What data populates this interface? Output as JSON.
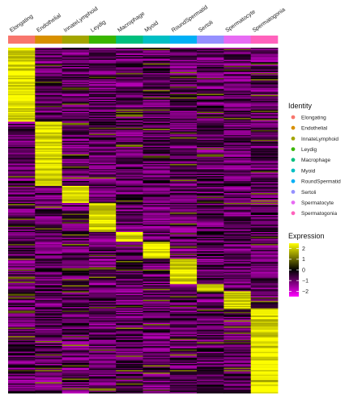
{
  "chart_data": {
    "type": "heatmap",
    "title": "",
    "clusters": [
      "Elongating",
      "Endothelial",
      "InnateLymphoid",
      "Leydig",
      "Macrophage",
      "Myoid",
      "RoundSpermatid",
      "Sertoli",
      "Spermatocyte",
      "Spermatogonia"
    ],
    "cluster_colors": [
      "#f8766d",
      "#d89000",
      "#a3a500",
      "#39b600",
      "#00bf7d",
      "#00bfc4",
      "#00b0f6",
      "#9590ff",
      "#e76bf3",
      "#ff62bc"
    ],
    "gene_block_fractions": [
      0.215,
      0.185,
      0.05,
      0.085,
      0.025,
      0.05,
      0.075,
      0.02,
      0.05,
      0.245
    ],
    "legend": {
      "identity_title": "Identity",
      "expression_title": "Expression",
      "expression_ticks": [
        "2",
        "1",
        "0",
        "−1",
        "−2"
      ],
      "expression_values": [
        2,
        1,
        0,
        -1,
        -2
      ],
      "expression_range": [
        -2.5,
        2.5
      ]
    },
    "color_scale": {
      "low": "#ff00ff",
      "mid": "#000000",
      "high": "#ffff00"
    }
  }
}
